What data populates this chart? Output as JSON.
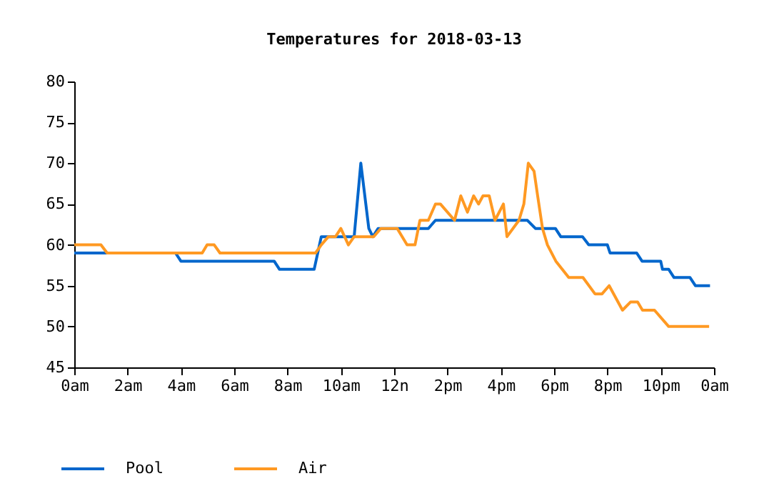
{
  "chart_data": {
    "type": "line",
    "title": "Temperatures for 2018-03-13",
    "xlim": [
      "2018-03-13T00:00",
      "2018-03-14T00:00"
    ],
    "xticks": [
      {
        "value": "2018-03-13T00:00",
        "label": "0am"
      },
      {
        "value": "2018-03-13T02:00",
        "label": "2am"
      },
      {
        "value": "2018-03-13T04:00",
        "label": "4am"
      },
      {
        "value": "2018-03-13T06:00",
        "label": "6am"
      },
      {
        "value": "2018-03-13T08:00",
        "label": "8am"
      },
      {
        "value": "2018-03-13T10:00",
        "label": "10am"
      },
      {
        "value": "2018-03-13T12:00",
        "label": "12n"
      },
      {
        "value": "2018-03-13T14:00",
        "label": "2pm"
      },
      {
        "value": "2018-03-13T16:00",
        "label": "4pm"
      },
      {
        "value": "2018-03-13T18:00",
        "label": "6pm"
      },
      {
        "value": "2018-03-13T20:00",
        "label": "8pm"
      },
      {
        "value": "2018-03-13T22:00",
        "label": "10pm"
      },
      {
        "value": "2018-03-14T00:00",
        "label": "0am"
      }
    ],
    "ylim": [
      45,
      80
    ],
    "yticks": [
      45,
      50,
      55,
      60,
      65,
      70,
      75,
      80
    ],
    "grid": false,
    "legend": "bottom left",
    "marker": "none",
    "line_style": "solid",
    "series": [
      {
        "name": "Pool",
        "color": "#0066cc",
        "x": [
          "2018-03-13T00:00",
          "2018-03-13T03:48",
          "2018-03-13T04:00",
          "2018-03-13T07:30",
          "2018-03-13T07:42",
          "2018-03-13T09:00",
          "2018-03-13T09:16",
          "2018-03-13T10:30",
          "2018-03-13T10:45",
          "2018-03-13T11:03",
          "2018-03-13T11:12",
          "2018-03-13T11:24",
          "2018-03-13T13:17",
          "2018-03-13T13:33",
          "2018-03-13T17:00",
          "2018-03-13T17:18",
          "2018-03-13T18:03",
          "2018-03-13T18:15",
          "2018-03-13T19:04",
          "2018-03-13T19:18",
          "2018-03-13T20:00",
          "2018-03-13T20:06",
          "2018-03-13T21:06",
          "2018-03-13T21:18",
          "2018-03-13T22:00",
          "2018-03-13T22:04",
          "2018-03-13T22:18",
          "2018-03-13T22:30",
          "2018-03-13T23:06",
          "2018-03-13T23:18",
          "2018-03-13T23:51"
        ],
        "values": [
          59,
          59,
          58,
          58,
          57,
          57,
          61,
          61,
          70,
          62,
          61,
          62,
          62,
          63,
          63,
          62,
          62,
          61,
          61,
          60,
          60,
          59,
          59,
          58,
          58,
          57,
          57,
          56,
          56,
          55,
          55
        ]
      },
      {
        "name": "Air",
        "color": "#ff9922",
        "x": [
          "2018-03-13T00:00",
          "2018-03-13T01:00",
          "2018-03-13T01:14",
          "2018-03-13T04:48",
          "2018-03-13T04:59",
          "2018-03-13T05:15",
          "2018-03-13T05:28",
          "2018-03-13T09:03",
          "2018-03-13T09:16",
          "2018-03-13T09:32",
          "2018-03-13T09:48",
          "2018-03-13T10:00",
          "2018-03-13T10:17",
          "2018-03-13T10:30",
          "2018-03-13T11:14",
          "2018-03-13T11:30",
          "2018-03-13T12:07",
          "2018-03-13T12:29",
          "2018-03-13T12:47",
          "2018-03-13T12:58",
          "2018-03-13T13:17",
          "2018-03-13T13:33",
          "2018-03-13T13:44",
          "2018-03-13T14:16",
          "2018-03-13T14:30",
          "2018-03-13T14:45",
          "2018-03-13T14:59",
          "2018-03-13T15:10",
          "2018-03-13T15:20",
          "2018-03-13T15:34",
          "2018-03-13T15:47",
          "2018-03-13T16:06",
          "2018-03-13T16:14",
          "2018-03-13T16:41",
          "2018-03-13T16:52",
          "2018-03-13T17:02",
          "2018-03-13T17:15",
          "2018-03-13T17:23",
          "2018-03-13T17:34",
          "2018-03-13T17:45",
          "2018-03-13T18:04",
          "2018-03-13T18:33",
          "2018-03-13T19:05",
          "2018-03-13T19:32",
          "2018-03-13T19:48",
          "2018-03-13T20:04",
          "2018-03-13T20:34",
          "2018-03-13T20:52",
          "2018-03-13T21:08",
          "2018-03-13T21:19",
          "2018-03-13T21:46",
          "2018-03-13T22:18",
          "2018-03-13T23:49"
        ],
        "values": [
          60,
          60,
          59,
          59,
          60,
          60,
          59,
          59,
          60,
          61,
          61,
          62,
          60,
          61,
          61,
          62,
          62,
          60,
          60,
          63,
          63,
          65,
          65,
          63,
          66,
          64,
          66,
          65,
          66,
          66,
          63,
          65,
          61,
          63,
          65,
          70,
          69,
          66,
          62,
          60,
          58,
          56,
          56,
          54,
          54,
          55,
          52,
          53,
          53,
          52,
          52,
          50,
          50
        ]
      }
    ]
  }
}
